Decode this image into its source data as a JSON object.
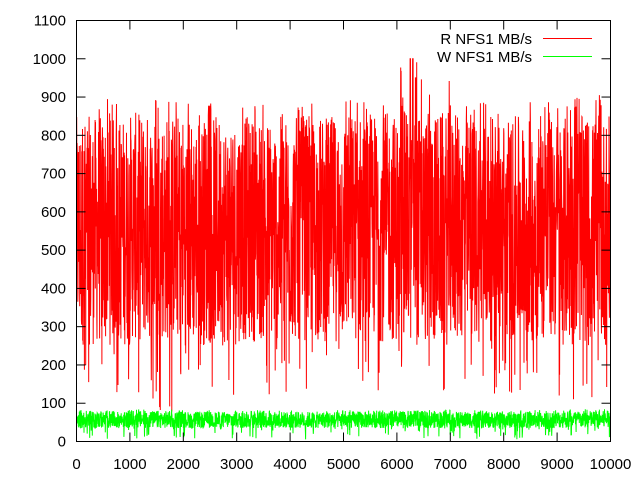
{
  "chart_data": {
    "type": "line",
    "title": "",
    "xlabel": "",
    "ylabel": "",
    "xlim": [
      0,
      10000
    ],
    "ylim": [
      0,
      1100
    ],
    "x_ticks": [
      "0",
      "1000",
      "2000",
      "3000",
      "4000",
      "5000",
      "6000",
      "7000",
      "8000",
      "9000",
      "10000"
    ],
    "y_ticks": [
      "0",
      "100",
      "200",
      "300",
      "400",
      "500",
      "600",
      "700",
      "800",
      "900",
      "1000",
      "1100"
    ],
    "grid": false,
    "legend_position": "top-right",
    "series": [
      {
        "name": "R NFS1 MB/s",
        "color": "#ff0000",
        "points": 10000,
        "envelope_by_1000": {
          "x": [
            0,
            1000,
            2000,
            3000,
            4000,
            5000,
            6000,
            7000,
            8000,
            9000
          ],
          "typical_min": [
            250,
            260,
            250,
            260,
            260,
            260,
            250,
            260,
            260,
            250
          ],
          "typical_max": [
            850,
            860,
            850,
            850,
            850,
            860,
            860,
            850,
            850,
            850
          ],
          "extreme_min": [
            110,
            70,
            120,
            110,
            130,
            120,
            90,
            120,
            100,
            110
          ],
          "extreme_max": [
            895,
            895,
            885,
            880,
            895,
            895,
            1000,
            890,
            890,
            905
          ]
        },
        "spikes": [
          {
            "x": 6250,
            "y": 1000
          },
          {
            "x": 6300,
            "y": 1000
          },
          {
            "x": 6350,
            "y": 950
          }
        ]
      },
      {
        "name": "W NFS1 MB/s",
        "color": "#00ff00",
        "points": 10000,
        "envelope_by_1000": {
          "x": [
            0,
            1000,
            2000,
            3000,
            4000,
            5000,
            6000,
            7000,
            8000,
            9000
          ],
          "typical_min": [
            35,
            35,
            35,
            35,
            35,
            35,
            35,
            35,
            35,
            35
          ],
          "typical_max": [
            78,
            80,
            78,
            78,
            78,
            78,
            80,
            78,
            78,
            80
          ],
          "extreme_min": [
            5,
            5,
            5,
            5,
            5,
            5,
            5,
            5,
            5,
            5
          ],
          "extreme_max": [
            82,
            85,
            82,
            82,
            82,
            82,
            82,
            82,
            82,
            85
          ]
        }
      }
    ]
  }
}
